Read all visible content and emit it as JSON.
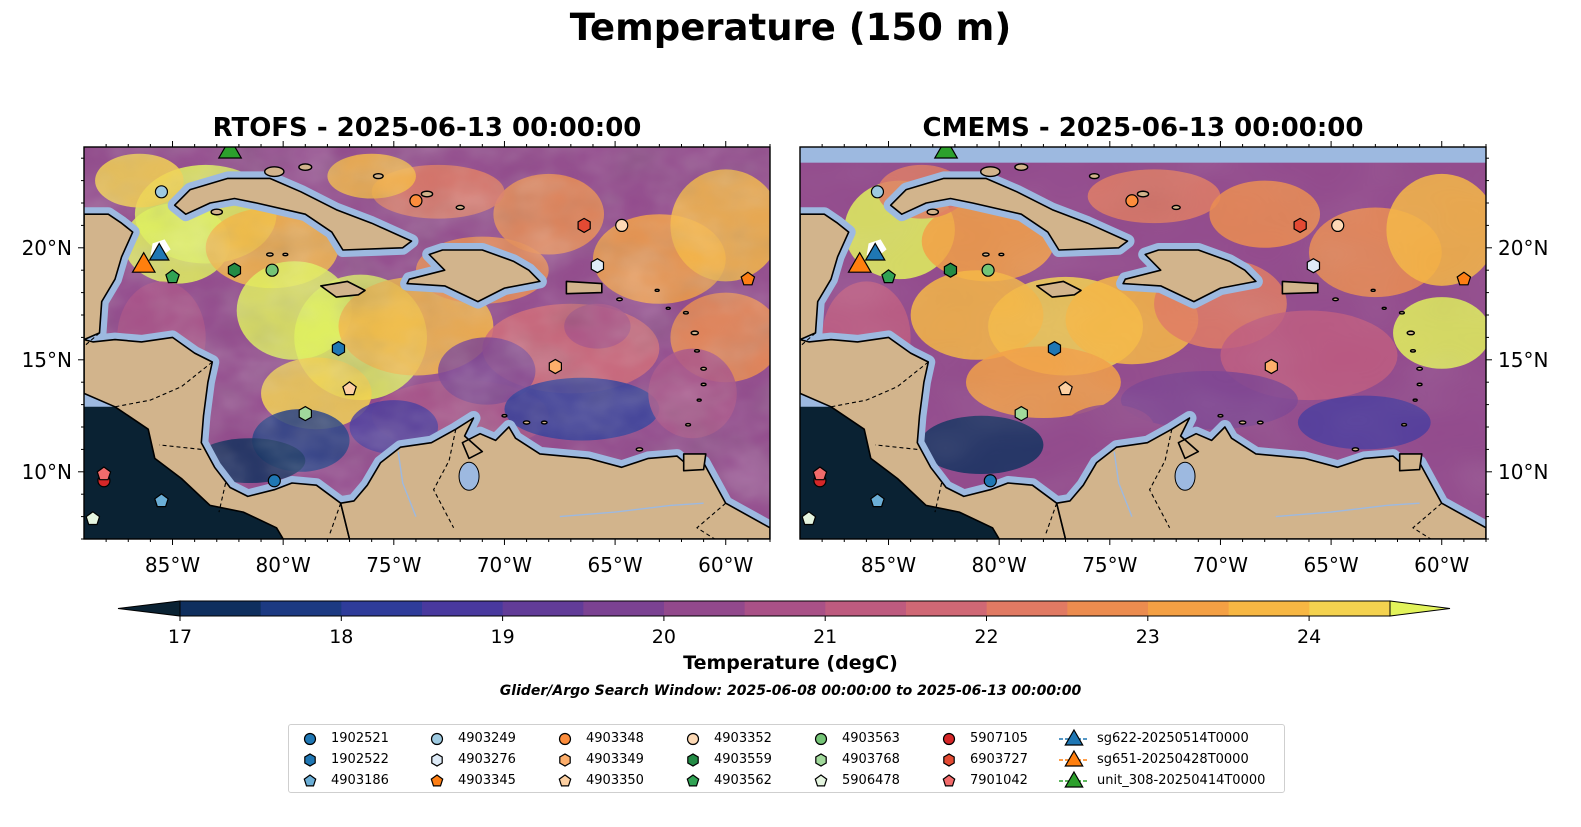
{
  "figure_title": "Temperature (150 m)",
  "panels": [
    {
      "title": "RTOFS - 2025-06-13 00:00:00",
      "model": "RTOFS"
    },
    {
      "title": "CMEMS - 2025-06-13 00:00:00",
      "model": "CMEMS"
    }
  ],
  "axes": {
    "lon_ticks": [
      "85°W",
      "80°W",
      "75°W",
      "70°W",
      "65°W",
      "60°W"
    ],
    "lat_ticks": [
      "20°N",
      "15°N",
      "10°N"
    ],
    "lon_range": [
      -89,
      -58
    ],
    "lat_range": [
      7,
      24.5
    ]
  },
  "colorbar": {
    "label": "Temperature (degC)",
    "ticks": [
      "17",
      "18",
      "19",
      "20",
      "21",
      "22",
      "23",
      "24"
    ],
    "range": [
      16.6,
      24.6
    ],
    "colors": [
      "#0a2233",
      "#0f2f5e",
      "#1c3a82",
      "#2f3c9a",
      "#49399e",
      "#623c98",
      "#7b4292",
      "#92498c",
      "#a95187",
      "#be5b7f",
      "#d06875",
      "#e17a63",
      "#ec8c4f",
      "#f4a044",
      "#f7b743",
      "#f4d24f",
      "#e2f35b"
    ],
    "extend": "both"
  },
  "search_window": "Glider/Argo Search Window: 2025-06-08 00:00:00 to 2025-06-13 00:00:00",
  "land_color": "#d2b48c",
  "shelf_color": "#9db9e0",
  "legend": {
    "columns": [
      [
        {
          "label": "1902521",
          "marker": "circle",
          "color": "#1f77b4"
        },
        {
          "label": "1902522",
          "marker": "hexagon",
          "color": "#1f77b4"
        },
        {
          "label": "4903186",
          "marker": "pentagon",
          "color": "#6baed6"
        }
      ],
      [
        {
          "label": "4903249",
          "marker": "circle",
          "color": "#9ecae1"
        },
        {
          "label": "4903276",
          "marker": "hexagon",
          "color": "#deebf7"
        },
        {
          "label": "4903345",
          "marker": "pentagon",
          "color": "#fd7e14"
        }
      ],
      [
        {
          "label": "4903348",
          "marker": "circle",
          "color": "#fd8d3c"
        },
        {
          "label": "4903349",
          "marker": "hexagon",
          "color": "#fdae6b"
        },
        {
          "label": "4903350",
          "marker": "pentagon",
          "color": "#fdd0a2"
        }
      ],
      [
        {
          "label": "4903352",
          "marker": "circle",
          "color": "#fdd9b5"
        },
        {
          "label": "4903559",
          "marker": "hexagon",
          "color": "#238b45"
        },
        {
          "label": "4903562",
          "marker": "pentagon",
          "color": "#31a354"
        }
      ],
      [
        {
          "label": "4903563",
          "marker": "circle",
          "color": "#74c476"
        },
        {
          "label": "4903768",
          "marker": "hexagon",
          "color": "#a1d99b"
        },
        {
          "label": "5906478",
          "marker": "pentagon",
          "color": "#e5f5e0"
        }
      ],
      [
        {
          "label": "5907105",
          "marker": "circle",
          "color": "#d62728"
        },
        {
          "label": "6903727",
          "marker": "hexagon",
          "color": "#e34a33"
        },
        {
          "label": "7901042",
          "marker": "pentagon",
          "color": "#f26b6b"
        }
      ],
      [
        {
          "label": "sg622-20250514T0000",
          "marker": "triangle",
          "color": "#1f77b4"
        },
        {
          "label": "sg651-20250428T0000",
          "marker": "triangle",
          "color": "#ff7f0e"
        },
        {
          "label": "unit_308-20250414T0000",
          "marker": "triangle",
          "color": "#2ca02c"
        }
      ]
    ]
  }
}
